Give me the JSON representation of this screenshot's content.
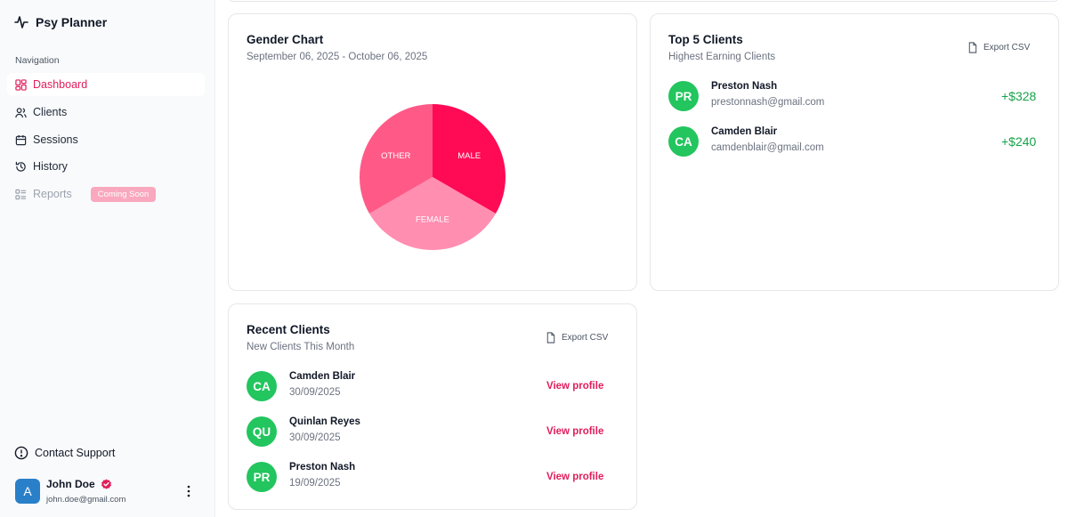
{
  "app": {
    "name": "Psy Planner"
  },
  "sidebar": {
    "heading": "Navigation",
    "items": [
      {
        "label": "Dashboard",
        "icon": "dashboard-icon",
        "active": true
      },
      {
        "label": "Clients",
        "icon": "users-icon"
      },
      {
        "label": "Sessions",
        "icon": "calendar-icon"
      },
      {
        "label": "History",
        "icon": "history-icon"
      },
      {
        "label": "Reports",
        "icon": "reports-icon",
        "disabled": true,
        "badge": "Coming Soon"
      }
    ],
    "contact": "Contact Support",
    "user": {
      "initial": "A",
      "name": "John Doe",
      "email": "john.doe@gmail.com"
    }
  },
  "gender_chart": {
    "title": "Gender Chart",
    "date_range": "September 06, 2025 - October 06, 2025",
    "colors": {
      "male": "#ff0a55",
      "other": "#ff5a87",
      "female": "#ff8eb0"
    }
  },
  "chart_data": {
    "type": "pie",
    "title": "Gender Chart",
    "categories": [
      "MALE",
      "FEMALE",
      "OTHER"
    ],
    "values": [
      33.3,
      33.3,
      33.3
    ]
  },
  "top_clients": {
    "title": "Top 5 Clients",
    "subtitle": "Highest Earning Clients",
    "export_label": "Export CSV",
    "rows": [
      {
        "initials": "PR",
        "name": "Preston Nash",
        "email": "prestonnash@gmail.com",
        "amount": "+$328"
      },
      {
        "initials": "CA",
        "name": "Camden Blair",
        "email": "camdenblair@gmail.com",
        "amount": "+$240"
      }
    ]
  },
  "recent_clients": {
    "title": "Recent Clients",
    "subtitle": "New Clients This Month",
    "export_label": "Export CSV",
    "view_label": "View profile",
    "rows": [
      {
        "initials": "CA",
        "name": "Camden Blair",
        "date": "30/09/2025"
      },
      {
        "initials": "QU",
        "name": "Quinlan Reyes",
        "date": "30/09/2025"
      },
      {
        "initials": "PR",
        "name": "Preston Nash",
        "date": "19/09/2025"
      }
    ]
  }
}
